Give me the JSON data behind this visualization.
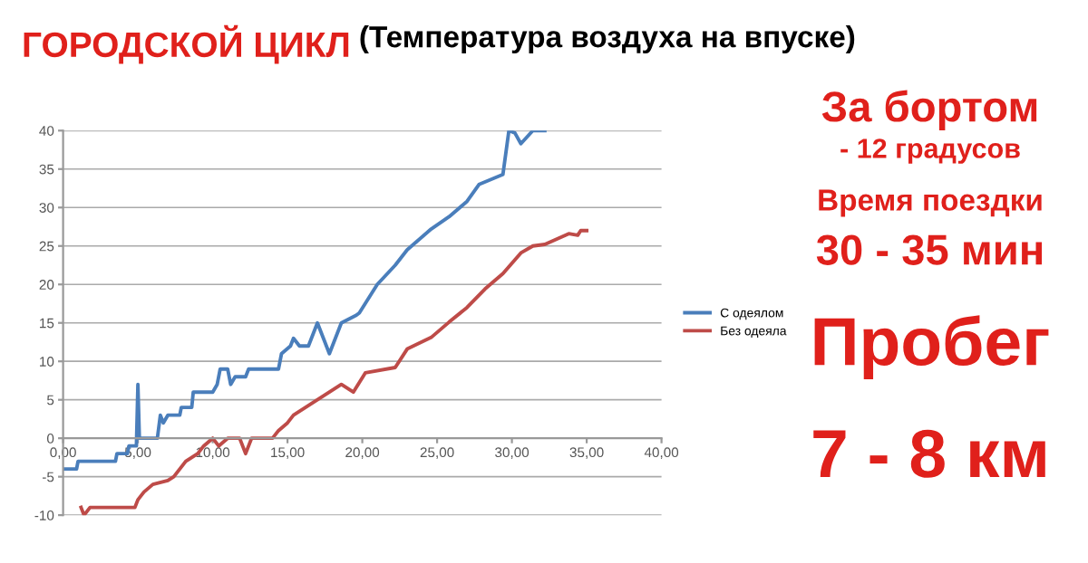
{
  "chart_data": {
    "type": "line",
    "title": "ГОРОДСКОЙ ЦИКЛ",
    "subtitle": "(Температура воздуха на впуске)",
    "annotations": [
      "За бортом",
      "- 12 градусов",
      "Время поездки",
      "30 - 35 мин",
      "Пробег",
      "7 - 8 км"
    ],
    "series": [
      {
        "name": "С одеялом",
        "color": "#4a7ebb",
        "x": [
          0,
          0.2,
          0.9,
          1.0,
          3.5,
          3.6,
          4.3,
          4.4,
          4.9,
          5.0,
          5.1,
          5.3,
          6.3,
          6.5,
          6.7,
          7.0,
          7.8,
          7.9,
          8.6,
          8.7,
          10.0,
          10.3,
          10.5,
          11.0,
          11.2,
          11.5,
          12.2,
          12.4,
          14.4,
          14.6,
          15.2,
          15.4,
          15.8,
          16.4,
          16.6,
          17.0,
          17.4,
          17.8,
          18.2,
          18.6,
          19.6,
          19.8,
          21.0,
          22.2,
          23.0,
          24.6,
          25.8,
          27.0,
          27.8,
          29.4,
          29.8,
          30.2,
          30.6,
          31.4,
          31.8,
          32.2
        ],
        "values": [
          -4,
          -4,
          -4,
          -3,
          -3,
          -2,
          -2,
          -1,
          -1,
          7,
          0,
          0,
          0,
          3,
          2,
          3,
          3,
          4,
          4,
          6,
          6,
          7,
          9,
          9,
          7,
          8,
          8,
          9,
          9,
          11,
          12,
          13,
          12,
          12,
          13,
          15,
          13,
          11,
          13,
          15,
          16,
          16.3,
          20,
          22.5,
          24.5,
          27.2,
          28.8,
          30.8,
          33,
          34.3,
          40,
          39.7,
          38.3,
          40,
          40,
          40
        ]
      },
      {
        "name": "Без одеяла",
        "color": "#be4b48",
        "x": [
          1.2,
          1.4,
          1.8,
          4.8,
          5.0,
          5.4,
          6.0,
          7.0,
          7.4,
          7.8,
          8.2,
          9.0,
          9.4,
          10.0,
          10.4,
          11.0,
          11.8,
          12.2,
          12.6,
          14.0,
          14.4,
          15.0,
          15.4,
          16.2,
          17.0,
          17.8,
          18.6,
          19.4,
          20.2,
          22.2,
          23.0,
          24.6,
          25.8,
          27.0,
          28.2,
          29.4,
          30.6,
          31.4,
          32.2,
          33.8,
          34.4,
          34.6,
          35.0
        ],
        "values": [
          -9,
          -10,
          -9,
          -9,
          -8,
          -7,
          -6,
          -5.5,
          -5,
          -4,
          -3,
          -2,
          -1,
          0,
          -1,
          0,
          0,
          -2,
          0,
          0,
          1,
          2,
          3,
          4,
          5,
          6,
          7,
          6,
          8.5,
          9.2,
          11.6,
          13.1,
          15.1,
          17,
          19.4,
          21.4,
          24.1,
          25,
          25.2,
          26.6,
          26.4,
          27,
          27
        ]
      }
    ],
    "xlim": [
      0,
      40
    ],
    "xticks": [
      {
        "value": 0,
        "label": "0,00"
      },
      {
        "value": 5,
        "label": "5,00"
      },
      {
        "value": 10,
        "label": "10,00"
      },
      {
        "value": 15,
        "label": "15,00"
      },
      {
        "value": 20,
        "label": "20,00"
      },
      {
        "value": 25,
        "label": "25,00"
      },
      {
        "value": 30,
        "label": "30,00"
      },
      {
        "value": 35,
        "label": "35,00"
      },
      {
        "value": 40,
        "label": "40,00"
      }
    ],
    "ylim": [
      -10,
      40
    ],
    "yticks": [
      -10,
      -5,
      0,
      5,
      10,
      15,
      20,
      25,
      30,
      35,
      40
    ],
    "grid": "y",
    "legend": "right",
    "marker": "none",
    "line_style": "solid"
  }
}
